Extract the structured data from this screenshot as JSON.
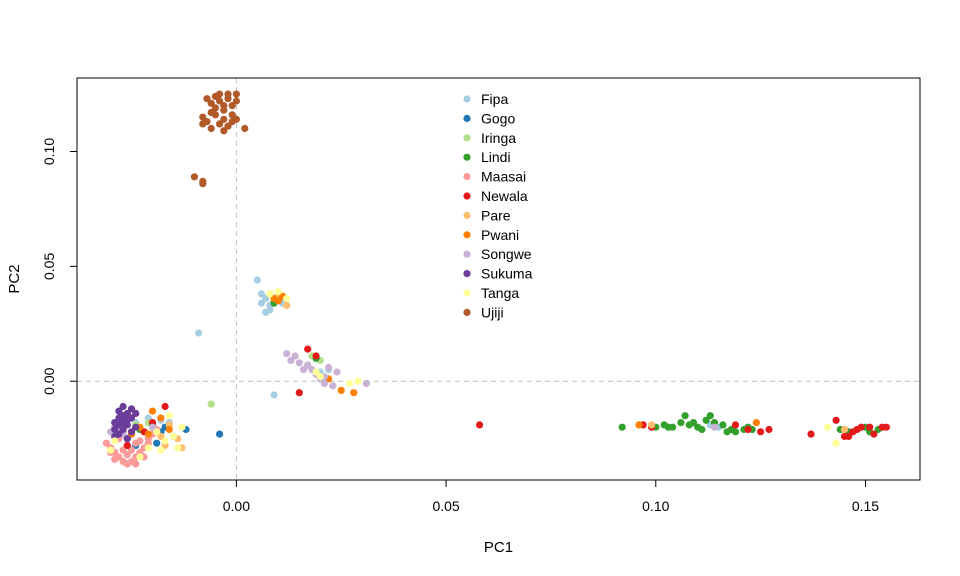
{
  "chart_data": {
    "type": "scatter",
    "title": "",
    "xlabel": "PC1",
    "ylabel": "PC2",
    "xlim": [
      -0.038,
      0.163
    ],
    "ylim": [
      -0.043,
      0.132
    ],
    "xticks": [
      0.0,
      0.05,
      0.1,
      0.15
    ],
    "xtick_labels": [
      "0.00",
      "0.05",
      "0.10",
      "0.15"
    ],
    "yticks": [
      0.0,
      0.05,
      0.1
    ],
    "ytick_labels": [
      "0.00",
      "0.05",
      "0.10"
    ],
    "reference_lines": {
      "x": 0,
      "y": 0,
      "style": "dashed",
      "color": "#bfbfbf"
    },
    "grid": false,
    "legend_position": "top-center",
    "series": [
      {
        "name": "Fipa",
        "color": "#a6cee3",
        "points": [
          [
            0.005,
            0.044
          ],
          [
            0.006,
            0.038
          ],
          [
            0.007,
            0.036
          ],
          [
            0.006,
            0.034
          ],
          [
            0.008,
            0.033
          ],
          [
            0.009,
            0.035
          ],
          [
            0.008,
            0.031
          ],
          [
            0.007,
            0.03
          ],
          [
            0.011,
            0.034
          ],
          [
            0.009,
            -0.006
          ],
          [
            -0.009,
            0.021
          ],
          [
            -0.026,
            -0.015
          ],
          [
            -0.024,
            -0.018
          ],
          [
            -0.021,
            -0.016
          ],
          [
            -0.018,
            -0.017
          ],
          [
            -0.028,
            -0.02
          ],
          [
            -0.016,
            -0.018
          ],
          [
            -0.022,
            -0.022
          ],
          [
            0.022,
            0.005
          ],
          [
            0.02,
            0.004
          ],
          [
            0.113,
            -0.019
          ],
          [
            0.115,
            -0.02
          ]
        ]
      },
      {
        "name": "Gogo",
        "color": "#1f78b4",
        "points": [
          [
            -0.004,
            -0.023
          ],
          [
            -0.012,
            -0.021
          ],
          [
            -0.015,
            -0.024
          ],
          [
            -0.018,
            -0.022
          ],
          [
            -0.019,
            -0.027
          ],
          [
            -0.024,
            -0.028
          ],
          [
            -0.026,
            -0.025
          ],
          [
            -0.017,
            -0.02
          ]
        ]
      },
      {
        "name": "Iringa",
        "color": "#b2df8a",
        "points": [
          [
            -0.006,
            -0.01
          ],
          [
            -0.024,
            -0.019
          ],
          [
            -0.021,
            -0.018
          ],
          [
            -0.019,
            -0.021
          ],
          [
            0.018,
            0.011
          ],
          [
            0.02,
            0.009
          ],
          [
            0.017,
            0.007
          ]
        ]
      },
      {
        "name": "Lindi",
        "color": "#33a02c",
        "points": [
          [
            0.092,
            -0.02
          ],
          [
            0.1,
            -0.02
          ],
          [
            0.102,
            -0.019
          ],
          [
            0.103,
            -0.02
          ],
          [
            0.104,
            -0.02
          ],
          [
            0.106,
            -0.018
          ],
          [
            0.107,
            -0.015
          ],
          [
            0.108,
            -0.019
          ],
          [
            0.109,
            -0.018
          ],
          [
            0.11,
            -0.02
          ],
          [
            0.111,
            -0.021
          ],
          [
            0.112,
            -0.017
          ],
          [
            0.113,
            -0.015
          ],
          [
            0.114,
            -0.018
          ],
          [
            0.116,
            -0.019
          ],
          [
            0.117,
            -0.022
          ],
          [
            0.118,
            -0.021
          ],
          [
            0.119,
            -0.022
          ],
          [
            0.121,
            -0.021
          ],
          [
            0.122,
            -0.02
          ],
          [
            0.123,
            -0.021
          ],
          [
            0.144,
            -0.021
          ],
          [
            0.146,
            -0.022
          ],
          [
            0.15,
            -0.02
          ],
          [
            0.151,
            -0.022
          ],
          [
            0.153,
            -0.021
          ],
          [
            -0.027,
            -0.02
          ],
          [
            -0.023,
            -0.021
          ],
          [
            -0.02,
            -0.019
          ],
          [
            -0.025,
            -0.023
          ],
          [
            0.019,
            0.01
          ],
          [
            0.009,
            0.034
          ],
          [
            0.01,
            0.036
          ]
        ]
      },
      {
        "name": "Maasai",
        "color": "#fb9a99",
        "points": [
          [
            -0.031,
            -0.027
          ],
          [
            -0.03,
            -0.029
          ],
          [
            -0.029,
            -0.031
          ],
          [
            -0.028,
            -0.033
          ],
          [
            -0.027,
            -0.03
          ],
          [
            -0.026,
            -0.032
          ],
          [
            -0.025,
            -0.035
          ],
          [
            -0.024,
            -0.033
          ],
          [
            -0.023,
            -0.031
          ],
          [
            -0.022,
            -0.029
          ],
          [
            -0.021,
            -0.027
          ],
          [
            -0.027,
            -0.035
          ],
          [
            -0.026,
            -0.028
          ],
          [
            -0.025,
            -0.03
          ],
          [
            -0.029,
            -0.034
          ],
          [
            -0.028,
            -0.025
          ],
          [
            -0.024,
            -0.027
          ],
          [
            -0.022,
            -0.033
          ],
          [
            -0.03,
            -0.031
          ],
          [
            -0.026,
            -0.036
          ],
          [
            -0.024,
            -0.036
          ],
          [
            -0.021,
            -0.025
          ],
          [
            -0.02,
            -0.023
          ],
          [
            -0.023,
            -0.026
          ],
          [
            -0.019,
            -0.021
          ],
          [
            -0.027,
            -0.022
          ]
        ]
      },
      {
        "name": "Newala",
        "color": "#e31a1c",
        "points": [
          [
            0.058,
            -0.019
          ],
          [
            0.097,
            -0.019
          ],
          [
            0.099,
            -0.02
          ],
          [
            0.119,
            -0.019
          ],
          [
            0.122,
            -0.021
          ],
          [
            0.125,
            -0.022
          ],
          [
            0.127,
            -0.021
          ],
          [
            0.137,
            -0.023
          ],
          [
            0.143,
            -0.017
          ],
          [
            0.145,
            -0.021
          ],
          [
            0.145,
            -0.024
          ],
          [
            0.146,
            -0.024
          ],
          [
            0.147,
            -0.022
          ],
          [
            0.148,
            -0.021
          ],
          [
            0.149,
            -0.02
          ],
          [
            0.151,
            -0.02
          ],
          [
            0.152,
            -0.023
          ],
          [
            0.154,
            -0.02
          ],
          [
            0.155,
            -0.02
          ],
          [
            -0.027,
            -0.02
          ],
          [
            -0.022,
            -0.022
          ],
          [
            -0.026,
            -0.028
          ],
          [
            -0.017,
            -0.011
          ],
          [
            -0.02,
            -0.018
          ],
          [
            0.015,
            -0.005
          ],
          [
            0.017,
            0.014
          ],
          [
            0.019,
            0.011
          ]
        ]
      },
      {
        "name": "Pare",
        "color": "#fdbf6f",
        "points": [
          [
            -0.016,
            -0.019
          ],
          [
            -0.014,
            -0.025
          ],
          [
            -0.013,
            -0.029
          ],
          [
            -0.017,
            -0.028
          ],
          [
            -0.018,
            -0.024
          ],
          [
            0.099,
            -0.019
          ],
          [
            0.145,
            -0.021
          ],
          [
            0.01,
            0.038
          ],
          [
            0.012,
            0.033
          ]
        ]
      },
      {
        "name": "Pwani",
        "color": "#ff7f00",
        "points": [
          [
            0.009,
            0.036
          ],
          [
            0.008,
            0.038
          ],
          [
            0.011,
            0.037
          ],
          [
            0.01,
            0.035
          ],
          [
            0.022,
            0.001
          ],
          [
            0.025,
            -0.004
          ],
          [
            0.028,
            -0.005
          ],
          [
            0.096,
            -0.019
          ],
          [
            0.124,
            -0.018
          ],
          [
            -0.018,
            -0.016
          ],
          [
            -0.021,
            -0.023
          ],
          [
            -0.016,
            -0.021
          ],
          [
            -0.02,
            -0.013
          ],
          [
            -0.023,
            -0.02
          ],
          [
            -0.025,
            -0.023
          ]
        ]
      },
      {
        "name": "Songwe",
        "color": "#cab2d6",
        "points": [
          [
            0.012,
            0.012
          ],
          [
            0.013,
            0.009
          ],
          [
            0.014,
            0.011
          ],
          [
            0.015,
            0.008
          ],
          [
            0.016,
            0.005
          ],
          [
            0.017,
            0.007
          ],
          [
            0.018,
            0.005
          ],
          [
            0.019,
            0.003
          ],
          [
            0.02,
            0.001
          ],
          [
            0.021,
            0.002
          ],
          [
            0.021,
            -0.001
          ],
          [
            0.022,
            0.006
          ],
          [
            0.023,
            -0.002
          ],
          [
            0.024,
            0.004
          ],
          [
            0.031,
            -0.001
          ],
          [
            0.114,
            -0.02
          ],
          [
            -0.03,
            -0.022
          ],
          [
            -0.029,
            -0.02
          ],
          [
            -0.028,
            -0.021
          ],
          [
            -0.027,
            -0.023
          ],
          [
            -0.025,
            -0.016
          ],
          [
            -0.02,
            -0.02
          ]
        ]
      },
      {
        "name": "Sukuma",
        "color": "#6a3d9a",
        "points": [
          [
            -0.029,
            -0.018
          ],
          [
            -0.028,
            -0.016
          ],
          [
            -0.028,
            -0.013
          ],
          [
            -0.027,
            -0.011
          ],
          [
            -0.027,
            -0.015
          ],
          [
            -0.026,
            -0.014
          ],
          [
            -0.026,
            -0.017
          ],
          [
            -0.025,
            -0.016
          ],
          [
            -0.025,
            -0.012
          ],
          [
            -0.026,
            -0.019
          ],
          [
            -0.027,
            -0.021
          ],
          [
            -0.028,
            -0.023
          ],
          [
            -0.029,
            -0.024
          ],
          [
            -0.024,
            -0.02
          ],
          [
            -0.025,
            -0.022
          ],
          [
            -0.026,
            -0.025
          ],
          [
            -0.027,
            -0.018
          ],
          [
            -0.029,
            -0.021
          ],
          [
            -0.024,
            -0.014
          ],
          [
            -0.028,
            -0.019
          ]
        ]
      },
      {
        "name": "Tanga",
        "color": "#ffff99",
        "points": [
          [
            0.008,
            0.038
          ],
          [
            0.01,
            0.039
          ],
          [
            0.012,
            0.036
          ],
          [
            0.019,
            0.004
          ],
          [
            0.02,
            0.002
          ],
          [
            0.027,
            -0.001
          ],
          [
            0.029,
            0.0
          ],
          [
            0.143,
            -0.027
          ],
          [
            0.141,
            -0.02
          ],
          [
            -0.014,
            -0.029
          ],
          [
            -0.015,
            -0.024
          ],
          [
            -0.017,
            -0.026
          ],
          [
            -0.019,
            -0.022
          ],
          [
            -0.021,
            -0.029
          ],
          [
            -0.029,
            -0.026
          ],
          [
            -0.03,
            -0.03
          ],
          [
            -0.023,
            -0.033
          ],
          [
            -0.018,
            -0.03
          ],
          [
            -0.016,
            -0.015
          ],
          [
            -0.013,
            -0.02
          ]
        ]
      },
      {
        "name": "Ujiji",
        "color": "#b15928",
        "points": [
          [
            -0.008,
            0.086
          ],
          [
            -0.008,
            0.087
          ],
          [
            -0.01,
            0.089
          ],
          [
            -0.008,
            0.112
          ],
          [
            -0.008,
            0.115
          ],
          [
            -0.007,
            0.113
          ],
          [
            -0.006,
            0.117
          ],
          [
            -0.006,
            0.121
          ],
          [
            -0.005,
            0.119
          ],
          [
            -0.005,
            0.124
          ],
          [
            -0.005,
            0.116
          ],
          [
            -0.004,
            0.112
          ],
          [
            -0.004,
            0.122
          ],
          [
            -0.004,
            0.125
          ],
          [
            -0.003,
            0.118
          ],
          [
            -0.003,
            0.12
          ],
          [
            -0.003,
            0.114
          ],
          [
            -0.002,
            0.123
          ],
          [
            -0.002,
            0.111
          ],
          [
            -0.002,
            0.125
          ],
          [
            -0.001,
            0.12
          ],
          [
            -0.001,
            0.116
          ],
          [
            0.0,
            0.114
          ],
          [
            0.0,
            0.122
          ],
          [
            0.0,
            0.125
          ],
          [
            0.002,
            0.11
          ],
          [
            -0.007,
            0.123
          ],
          [
            -0.006,
            0.11
          ],
          [
            -0.003,
            0.109
          ],
          [
            -0.001,
            0.113
          ]
        ]
      }
    ]
  }
}
